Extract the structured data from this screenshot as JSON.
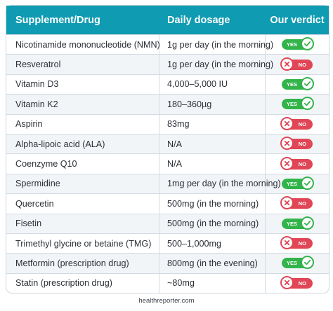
{
  "header": {
    "col1": "Supplement/Drug",
    "col2": "Daily dosage",
    "col3": "Our verdict"
  },
  "rows": [
    {
      "name": "Nicotinamide mononucleotide (NMN)",
      "dosage": "1g per day (in the morning)",
      "verdict": "YES"
    },
    {
      "name": "Resveratrol",
      "dosage": "1g per day (in the morning)",
      "verdict": "NO"
    },
    {
      "name": "Vitamin D3",
      "dosage": "4,000–5,000 IU",
      "verdict": "YES"
    },
    {
      "name": "Vitamin K2",
      "dosage": "180–360µg",
      "verdict": "YES"
    },
    {
      "name": "Aspirin",
      "dosage": "83mg",
      "verdict": "NO"
    },
    {
      "name": "Alpha-lipoic acid (ALA)",
      "dosage": "N/A",
      "verdict": "NO"
    },
    {
      "name": "Coenzyme Q10",
      "dosage": "N/A",
      "verdict": "NO"
    },
    {
      "name": "Spermidine",
      "dosage": "1mg per day (in the morning)",
      "verdict": "YES"
    },
    {
      "name": "Quercetin",
      "dosage": "500mg (in the morning)",
      "verdict": "NO"
    },
    {
      "name": "Fisetin",
      "dosage": "500mg (in the morning)",
      "verdict": "YES"
    },
    {
      "name": "Trimethyl glycine or betaine (TMG)",
      "dosage": "500–1,000mg",
      "verdict": "NO"
    },
    {
      "name": "Metformin (prescription drug)",
      "dosage": "800mg (in the evening)",
      "verdict": "YES"
    },
    {
      "name": "Statin (prescription drug)",
      "dosage": "~80mg",
      "verdict": "NO"
    }
  ],
  "colors": {
    "header_bg": "#0f9bb2",
    "yes": "#33b44b",
    "no": "#e04655"
  },
  "icons": {
    "yes": "check-icon",
    "no": "x-icon"
  },
  "footer": {
    "source": "healthreporter.com"
  }
}
